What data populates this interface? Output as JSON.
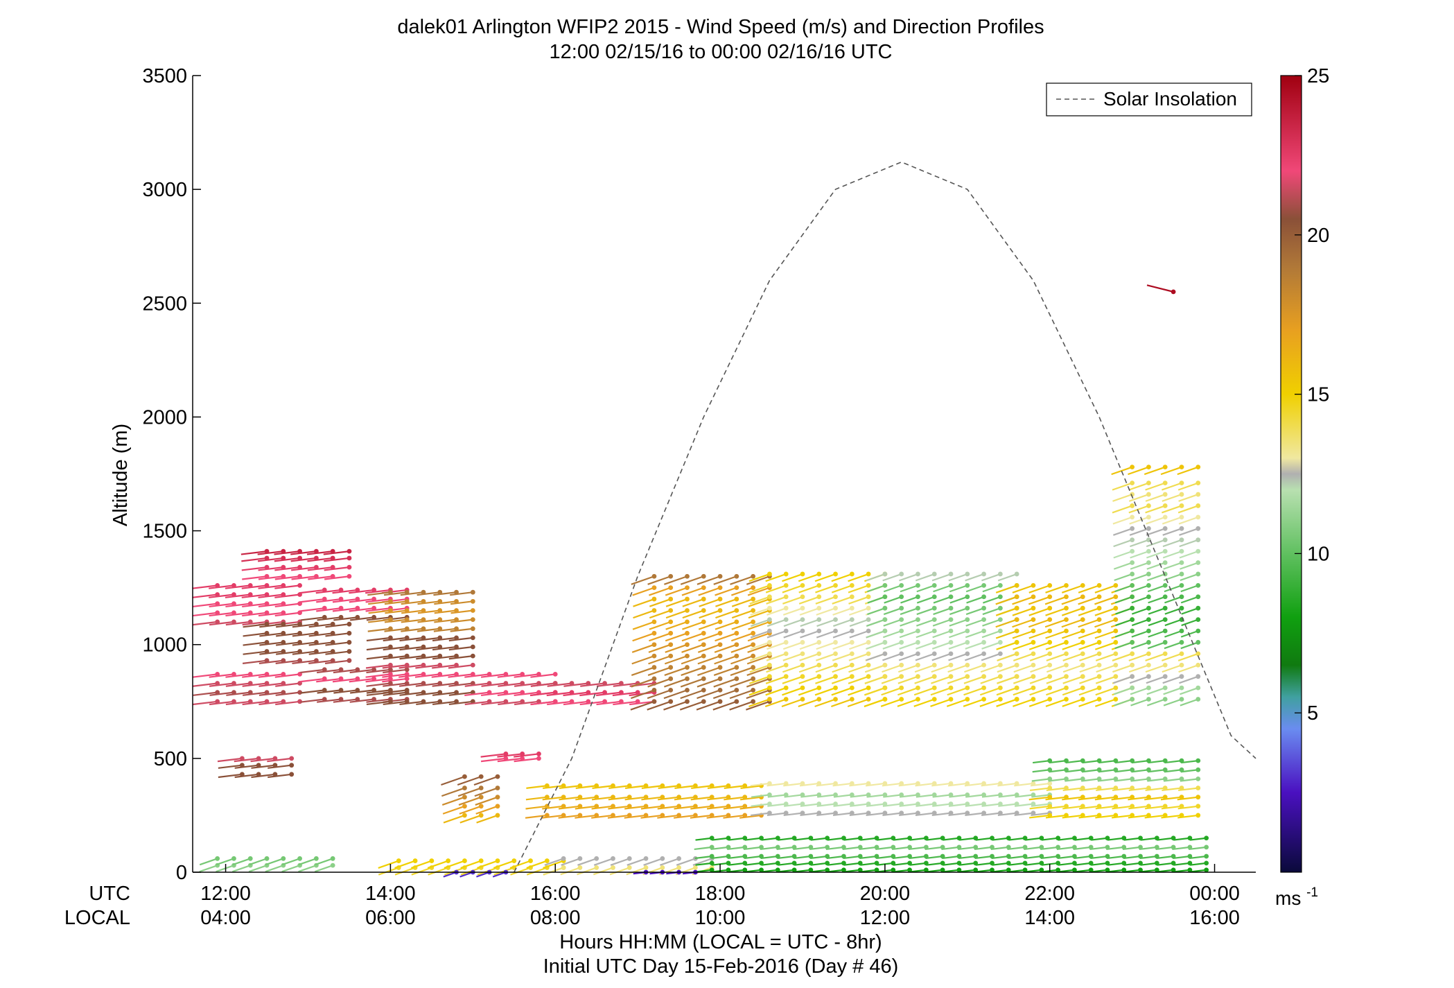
{
  "chart_data": {
    "type": "scatter",
    "title": "dalek01 Arlington WFIP2 2015 - Wind Speed (m/s) and Direction Profiles",
    "subtitle": "12:00 02/15/16 to 00:00 02/16/16  UTC",
    "ylabel": "Altitude (m)",
    "xlabel": "Hours HH:MM  (LOCAL = UTC - 8hr)",
    "xlabel2": "Initial UTC Day 15-Feb-2016 (Day # 46)",
    "x_row_label_utc": "UTC",
    "x_row_label_local": "LOCAL",
    "xlim_hours": [
      11.6,
      24.5
    ],
    "ylim": [
      0,
      3500
    ],
    "xticks_hours": [
      12,
      14,
      16,
      18,
      20,
      22,
      24
    ],
    "xtick_labels_utc": [
      "12:00",
      "14:00",
      "16:00",
      "18:00",
      "20:00",
      "22:00",
      "00:00"
    ],
    "xtick_labels_local": [
      "04:00",
      "06:00",
      "08:00",
      "10:00",
      "12:00",
      "14:00",
      "16:00"
    ],
    "yticks": [
      0,
      500,
      1000,
      1500,
      2000,
      2500,
      3000,
      3500
    ],
    "ytick_labels": [
      "0",
      "500",
      "1000",
      "1500",
      "2000",
      "2500",
      "3000",
      "3500"
    ],
    "legend": {
      "label": "Solar Insolation",
      "placement": "top-right"
    },
    "colorbar": {
      "range": [
        0,
        25
      ],
      "ticks": [
        5,
        10,
        15,
        20,
        25
      ],
      "tick_labels": [
        "5",
        "10",
        "15",
        "20",
        "25"
      ],
      "unit_label": "ms",
      "unit_exponent": "-1",
      "stops": [
        {
          "v": 0,
          "c": "#0a0a3a"
        },
        {
          "v": 2.5,
          "c": "#4a10c0"
        },
        {
          "v": 4.5,
          "c": "#6a8cf0"
        },
        {
          "v": 5.5,
          "c": "#40a0a0"
        },
        {
          "v": 6.5,
          "c": "#107a10"
        },
        {
          "v": 8,
          "c": "#10a010"
        },
        {
          "v": 10,
          "c": "#60c060"
        },
        {
          "v": 12,
          "c": "#b8e0b0"
        },
        {
          "v": 12.5,
          "c": "#b0b0b0"
        },
        {
          "v": 13,
          "c": "#f0e8a0"
        },
        {
          "v": 15,
          "c": "#f0d000"
        },
        {
          "v": 17,
          "c": "#e8a020"
        },
        {
          "v": 19,
          "c": "#b07838"
        },
        {
          "v": 20.5,
          "c": "#8a5038"
        },
        {
          "v": 22,
          "c": "#f04878"
        },
        {
          "v": 25,
          "c": "#a00010"
        }
      ]
    },
    "solar_insolation_curve": {
      "style": "dashed",
      "color": "#555555",
      "x_hours": [
        15.5,
        16.2,
        17.0,
        17.8,
        18.6,
        19.4,
        20.2,
        21.0,
        21.8,
        22.6,
        23.4,
        24.2,
        24.5
      ],
      "y": [
        0,
        500,
        1300,
        2000,
        2600,
        3000,
        3120,
        3000,
        2600,
        2000,
        1300,
        600,
        500
      ]
    },
    "wind_barbs": {
      "description_note": "",
      "segments": [
        {
          "t0": 11.9,
          "t1": 12.9,
          "alts": [
            750,
            790,
            830,
            870,
            1100,
            1140,
            1180,
            1220,
            1260
          ],
          "speeds": [
            21.5,
            21,
            21.5,
            22,
            21.5,
            22,
            22,
            22.5,
            22.5
          ],
          "dir": 255
        },
        {
          "t0": 12.5,
          "t1": 13.5,
          "alts": [
            930,
            970,
            1010,
            1050,
            1090,
            1300,
            1340,
            1380,
            1410
          ],
          "speeds": [
            21,
            20.5,
            20.5,
            20.5,
            20.5,
            22,
            22.5,
            23,
            23.5
          ],
          "dir": 255
        },
        {
          "t0": 13.2,
          "t1": 14.2,
          "alts": [
            760,
            800,
            850,
            890,
            1120,
            1160,
            1200,
            1240
          ],
          "speeds": [
            21,
            20.5,
            22,
            21,
            20.5,
            22,
            22,
            22.5
          ],
          "dir": 255
        },
        {
          "t0": 14.0,
          "t1": 15.1,
          "alts": [
            750,
            790,
            830,
            870,
            910,
            950,
            990,
            1030,
            1070,
            1110,
            1150,
            1190,
            1230
          ],
          "speeds": [
            20.5,
            20.5,
            21,
            22,
            21.5,
            20.5,
            20.5,
            20.5,
            18.5,
            18,
            17.5,
            18,
            19
          ],
          "dir": 255
        },
        {
          "t0": 15.2,
          "t1": 16.1,
          "alts": [
            750,
            790,
            830,
            870
          ],
          "speeds": [
            21.5,
            22,
            21.5,
            22
          ],
          "dir": 250
        },
        {
          "t0": 16.0,
          "t1": 17.2,
          "alts": [
            750,
            790,
            830
          ],
          "speeds": [
            22,
            22.5,
            21.5
          ],
          "dir": 250
        },
        {
          "t0": 17.2,
          "t1": 18.6,
          "alts": [
            750,
            800,
            850,
            900,
            950,
            1000,
            1050,
            1100,
            1150,
            1200,
            1250,
            1300
          ],
          "speeds": [
            20,
            19.5,
            19,
            18.5,
            18,
            17.5,
            17,
            16.5,
            16,
            16,
            17,
            19
          ],
          "dir": 240
        },
        {
          "t0": 18.6,
          "t1": 20.0,
          "alts": [
            760,
            810,
            860,
            910,
            960,
            1010,
            1060,
            1110,
            1160,
            1210,
            1260,
            1310
          ],
          "speeds": [
            15.5,
            15,
            14.5,
            14,
            13.5,
            13,
            12.5,
            12.2,
            13,
            14,
            14.5,
            15
          ],
          "dir": 235
        },
        {
          "t0": 20.0,
          "t1": 21.6,
          "alts": [
            760,
            810,
            860,
            910,
            960,
            1010,
            1060,
            1110,
            1160,
            1210,
            1260,
            1310
          ],
          "speeds": [
            15,
            14.5,
            14,
            13.5,
            12.5,
            12,
            11.5,
            11,
            10.5,
            10,
            10.5,
            12.2
          ],
          "dir": 235
        },
        {
          "t0": 21.6,
          "t1": 23.0,
          "alts": [
            760,
            810,
            860,
            910,
            960,
            1010,
            1060,
            1110,
            1160,
            1210,
            1260
          ],
          "speeds": [
            15,
            14.5,
            14,
            13.5,
            14,
            15,
            15.5,
            16,
            15.5,
            16,
            15.5
          ],
          "dir": 235
        },
        {
          "t0": 23.0,
          "t1": 23.9,
          "alts": [
            760,
            810,
            860,
            910,
            960,
            1010,
            1060,
            1110,
            1160,
            1210,
            1260,
            1310,
            1360,
            1410,
            1460,
            1510,
            1560,
            1610,
            1660,
            1710,
            1780
          ],
          "speeds": [
            11,
            11.5,
            12.5,
            13.5,
            14,
            10,
            9.5,
            9,
            9,
            9.5,
            10,
            11,
            11.5,
            12,
            12.2,
            12.5,
            13,
            14,
            13.5,
            14,
            15.5
          ],
          "dir": 215
        },
        {
          "t0": 12.2,
          "t1": 12.9,
          "alts": [
            430,
            470,
            500
          ],
          "speeds": [
            20.5,
            20.5,
            21.5
          ],
          "dir": 255
        },
        {
          "t0": 14.9,
          "t1": 15.4,
          "alts": [
            250,
            290,
            330,
            370,
            420
          ],
          "speeds": [
            16,
            17,
            18,
            19,
            20
          ],
          "dir": 240
        },
        {
          "t0": 15.4,
          "t1": 15.9,
          "alts": [
            500,
            520
          ],
          "speeds": [
            22,
            22.5
          ],
          "dir": 250
        },
        {
          "t0": 15.9,
          "t1": 18.6,
          "alts": [
            250,
            290,
            330,
            380
          ],
          "speeds": [
            17,
            16.5,
            16,
            15.5
          ],
          "dir": 250
        },
        {
          "t0": 18.6,
          "t1": 22.0,
          "alts": [
            260,
            300,
            340,
            390
          ],
          "speeds": [
            12.5,
            12,
            11.5,
            13
          ],
          "dir": 250
        },
        {
          "t0": 22.0,
          "t1": 23.9,
          "alts": [
            250,
            290,
            330,
            370,
            410,
            450,
            490
          ],
          "speeds": [
            15,
            14.5,
            15.5,
            14,
            11,
            10,
            9.5
          ],
          "dir": 250
        },
        {
          "t0": 11.9,
          "t1": 13.3,
          "alts": [
            30,
            60
          ],
          "speeds": [
            11,
            10.5
          ],
          "dir": 240
        },
        {
          "t0": 14.1,
          "t1": 16.1,
          "alts": [
            20,
            50
          ],
          "speeds": [
            14.5,
            15
          ],
          "dir": 245
        },
        {
          "t0": 16.1,
          "t1": 17.9,
          "alts": [
            20,
            60
          ],
          "speeds": [
            13.5,
            12.5
          ],
          "dir": 245
        },
        {
          "t0": 17.9,
          "t1": 23.9,
          "alts": [
            10,
            40,
            70,
            110,
            150
          ],
          "speeds": [
            8,
            8.5,
            9.5,
            10.5,
            8.5
          ],
          "dir": 255
        },
        {
          "t0": 14.8,
          "t1": 15.5,
          "alts": [
            0
          ],
          "speeds": [
            3
          ],
          "dir": 240
        },
        {
          "t0": 17.1,
          "t1": 17.8,
          "alts": [
            0
          ],
          "speeds": [
            2.5
          ],
          "dir": 270
        },
        {
          "t0": 23.5,
          "t1": 23.5,
          "alts": [
            2550
          ],
          "speeds": [
            24.5
          ],
          "dir": 290
        }
      ]
    }
  }
}
